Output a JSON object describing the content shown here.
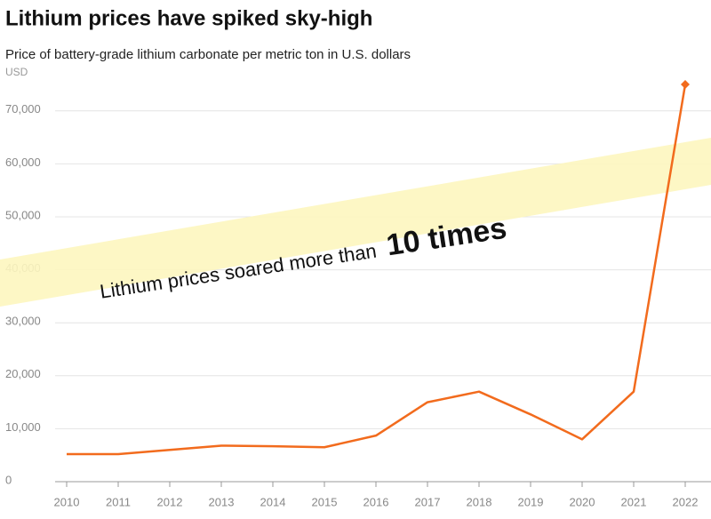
{
  "chart_data": {
    "type": "line",
    "title": "Lithium prices have spiked sky-high",
    "subtitle": "Price of battery-grade lithium carbonate per metric ton in U.S. dollars",
    "y_label": "USD",
    "annotation": [
      "Lithium prices soared more than",
      "10 times"
    ],
    "categories": [
      "2010",
      "2011",
      "2012",
      "2013",
      "2014",
      "2015",
      "2016",
      "2017",
      "2018",
      "2019",
      "2020",
      "2021",
      "2022"
    ],
    "values": [
      5200,
      5200,
      6000,
      6800,
      6700,
      6500,
      8700,
      15000,
      17000,
      12700,
      8000,
      17000,
      75000
    ],
    "color": "#f26b1d",
    "ylim": [
      0,
      75000
    ],
    "yticks": [
      0,
      {
        "value": 10000,
        "label": "10,000"
      },
      {
        "value": 20000,
        "label": "20,000"
      },
      {
        "value": 30000,
        "label": "30,000"
      },
      {
        "value": 40000,
        "label": "40,000"
      },
      {
        "value": 50000,
        "label": "50,000"
      },
      {
        "value": 60000,
        "label": "60,000"
      },
      {
        "value": 70000,
        "label": "70,000"
      }
    ],
    "grid": true
  }
}
